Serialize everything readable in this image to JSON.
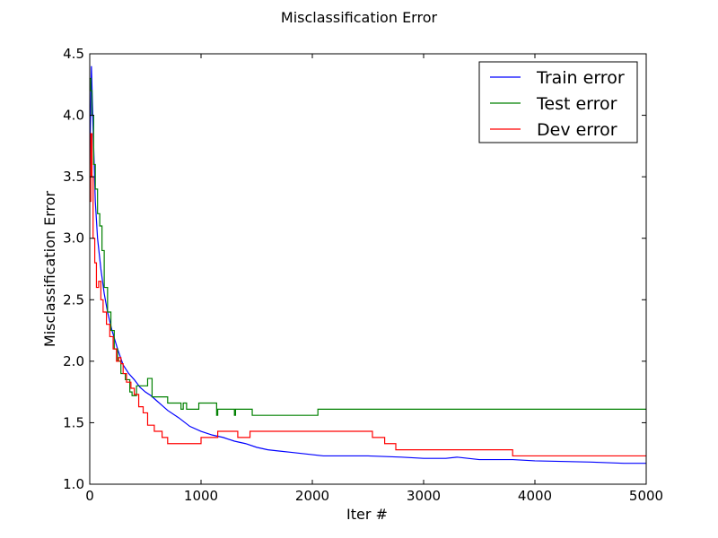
{
  "chart_data": {
    "type": "line",
    "title": "Misclassification Error",
    "xlabel": "Iter #",
    "ylabel": "Misclassification Error",
    "xlim": [
      0,
      5000
    ],
    "ylim": [
      1.0,
      4.5
    ],
    "xticks": [
      0,
      1000,
      2000,
      3000,
      4000,
      5000
    ],
    "xtick_labels": [
      "0",
      "1000",
      "2000",
      "3000",
      "4000",
      "5000"
    ],
    "yticks": [
      1.0,
      1.5,
      2.0,
      2.5,
      3.0,
      3.5,
      4.0,
      4.5
    ],
    "ytick_labels": [
      "1.0",
      "1.5",
      "2.0",
      "2.5",
      "3.0",
      "3.5",
      "4.0",
      "4.5"
    ],
    "grid": false,
    "legend_position": "top-right",
    "series": [
      {
        "name": "Train error",
        "color": "#0000ff",
        "step": false,
        "x": [
          0,
          15,
          30,
          50,
          70,
          100,
          130,
          160,
          200,
          250,
          300,
          350,
          400,
          450,
          500,
          550,
          600,
          650,
          700,
          800,
          900,
          1000,
          1100,
          1200,
          1300,
          1400,
          1500,
          1600,
          1700,
          1800,
          1900,
          2000,
          2100,
          2500,
          2800,
          3000,
          3200,
          3300,
          3500,
          3800,
          4000,
          4500,
          4800,
          5000
        ],
        "y": [
          3.6,
          4.4,
          3.9,
          3.3,
          3.0,
          2.75,
          2.55,
          2.4,
          2.25,
          2.1,
          1.97,
          1.9,
          1.85,
          1.79,
          1.75,
          1.72,
          1.68,
          1.64,
          1.6,
          1.54,
          1.47,
          1.43,
          1.4,
          1.38,
          1.35,
          1.33,
          1.3,
          1.28,
          1.27,
          1.26,
          1.25,
          1.24,
          1.23,
          1.23,
          1.22,
          1.21,
          1.21,
          1.22,
          1.2,
          1.2,
          1.19,
          1.18,
          1.17,
          1.17
        ]
      },
      {
        "name": "Test error",
        "color": "#008000",
        "step": true,
        "x": [
          0,
          10,
          20,
          35,
          50,
          70,
          90,
          110,
          130,
          160,
          190,
          220,
          250,
          280,
          320,
          360,
          380,
          420,
          480,
          520,
          560,
          700,
          820,
          840,
          870,
          980,
          1140,
          1150,
          1170,
          1300,
          1310,
          1320,
          1460,
          2050,
          5000
        ],
        "y": [
          4.3,
          4.2,
          4.0,
          3.6,
          3.4,
          3.2,
          3.1,
          2.9,
          2.6,
          2.4,
          2.25,
          2.1,
          2.0,
          1.9,
          1.85,
          1.75,
          1.72,
          1.8,
          1.8,
          1.86,
          1.71,
          1.66,
          1.61,
          1.66,
          1.61,
          1.66,
          1.56,
          1.61,
          1.61,
          1.56,
          1.61,
          1.61,
          1.56,
          1.61,
          1.61
        ]
      },
      {
        "name": "Dev error",
        "color": "#ff0000",
        "step": true,
        "x": [
          0,
          10,
          20,
          30,
          45,
          60,
          80,
          100,
          120,
          150,
          180,
          210,
          240,
          260,
          280,
          300,
          330,
          370,
          400,
          440,
          480,
          520,
          580,
          650,
          700,
          850,
          1000,
          1150,
          1180,
          1330,
          1440,
          2540,
          2650,
          2750,
          3800,
          5000
        ],
        "y": [
          3.3,
          3.85,
          3.5,
          3.0,
          2.8,
          2.6,
          2.65,
          2.5,
          2.4,
          2.3,
          2.2,
          2.1,
          2.0,
          2.03,
          1.98,
          1.9,
          1.83,
          1.78,
          1.73,
          1.63,
          1.58,
          1.48,
          1.43,
          1.38,
          1.33,
          1.33,
          1.38,
          1.43,
          1.43,
          1.38,
          1.43,
          1.38,
          1.33,
          1.28,
          1.23,
          1.23
        ]
      }
    ]
  }
}
